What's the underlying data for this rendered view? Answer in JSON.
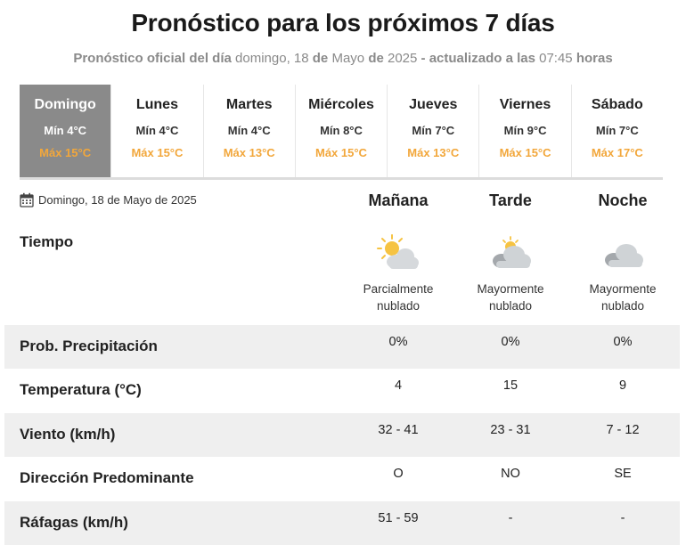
{
  "header": {
    "title": "Pronóstico para los próximos 7 días",
    "subtitle_prefix": "Pronóstico oficial del día",
    "subtitle_day": "domingo, 18",
    "subtitle_de1": "de",
    "subtitle_month": "Mayo",
    "subtitle_de2": "de",
    "subtitle_year": "2025",
    "subtitle_updated": "- actualizado a las",
    "subtitle_time": "07:45",
    "subtitle_hours": "horas"
  },
  "days": [
    {
      "name": "Domingo",
      "min": "Mín 4°C",
      "max": "Máx 15°C"
    },
    {
      "name": "Lunes",
      "min": "Mín 4°C",
      "max": "Máx 15°C"
    },
    {
      "name": "Martes",
      "min": "Mín 4°C",
      "max": "Máx 13°C"
    },
    {
      "name": "Miércoles",
      "min": "Mín 8°C",
      "max": "Máx 15°C"
    },
    {
      "name": "Jueves",
      "min": "Mín 7°C",
      "max": "Máx 13°C"
    },
    {
      "name": "Viernes",
      "min": "Mín 9°C",
      "max": "Máx 15°C"
    },
    {
      "name": "Sábado",
      "min": "Mín 7°C",
      "max": "Máx 17°C"
    }
  ],
  "selected_day_index": 0,
  "detail": {
    "date": "Domingo, 18 de Mayo de 2025",
    "periods": [
      "Mañana",
      "Tarde",
      "Noche"
    ],
    "tiempo_label": "Tiempo",
    "weather": [
      {
        "icon": "partly-cloudy-sun-icon",
        "desc": "Parcialmente\nnublado"
      },
      {
        "icon": "mostly-cloudy-sun-icon",
        "desc": "Mayormente\nnublado"
      },
      {
        "icon": "mostly-cloudy-night-icon",
        "desc": "Mayormente\nnublado"
      }
    ],
    "rows": [
      {
        "label": "Prob. Precipitación",
        "values": [
          "0%",
          "0%",
          "0%"
        ]
      },
      {
        "label": "Temperatura (°C)",
        "values": [
          "4",
          "15",
          "9"
        ]
      },
      {
        "label": "Viento (km/h)",
        "values": [
          "32 - 41",
          "23 - 31",
          "7 - 12"
        ]
      },
      {
        "label": "Dirección Predominante",
        "values": [
          "O",
          "NO",
          "SE"
        ]
      },
      {
        "label": "Ráfagas (km/h)",
        "values": [
          "51 - 59",
          "-",
          "-"
        ]
      }
    ]
  },
  "colors": {
    "active_day_bg": "#8a8a8a",
    "max_temp": "#f2a73b",
    "row_shade": "#efefef",
    "sun": "#f6c342",
    "cloud": "#cfd3d6"
  }
}
